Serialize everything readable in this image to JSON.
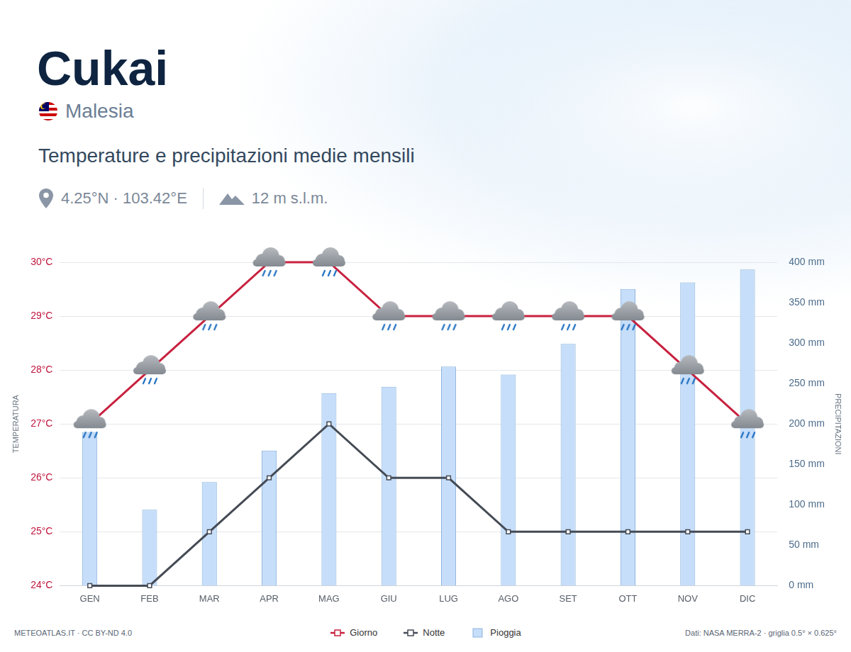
{
  "header": {
    "title": "Cukai",
    "country": "Malesia",
    "subtitle": "Temperature e precipitazioni medie mensili",
    "coordinates": "4.25°N · 103.42°E",
    "elevation": "12 m s.l.m."
  },
  "footer": {
    "credit": "METEOATLAS.IT · CC BY-ND 4.0",
    "source": "Dati: NASA MERRA-2 · griglia 0.5° × 0.625°"
  },
  "chart_data": {
    "type": "bar",
    "categories": [
      "GEN",
      "FEB",
      "MAR",
      "APR",
      "MAG",
      "GIU",
      "LUG",
      "AGO",
      "SET",
      "OTT",
      "NOV",
      "DIC"
    ],
    "series": [
      {
        "name": "Giorno",
        "type": "line",
        "color": "#c8213f",
        "marker": "cloud",
        "values": [
          27,
          28,
          29,
          30,
          30,
          29,
          29,
          29,
          29,
          29,
          28,
          27
        ]
      },
      {
        "name": "Notte",
        "type": "line",
        "color": "#454b55",
        "marker": "square",
        "values": [
          24,
          24,
          25,
          26,
          27,
          26,
          26,
          25,
          25,
          25,
          25,
          25
        ]
      },
      {
        "name": "Pioggia",
        "type": "bar",
        "color": "#c6defa",
        "axis": "y2",
        "values": [
          190,
          94,
          128,
          167,
          238,
          246,
          271,
          261,
          299,
          367,
          375,
          391
        ]
      }
    ],
    "y_label": "TEMPERATURA",
    "y2_label": "PRECIPITAZIONI",
    "ylim": [
      24,
      30
    ],
    "yticks": [
      {
        "value": 24,
        "label": "24°C"
      },
      {
        "value": 25,
        "label": "25°C"
      },
      {
        "value": 26,
        "label": "26°C"
      },
      {
        "value": 27,
        "label": "27°C"
      },
      {
        "value": 28,
        "label": "28°C"
      },
      {
        "value": 29,
        "label": "29°C"
      },
      {
        "value": 30,
        "label": "30°C"
      }
    ],
    "y2lim": [
      0,
      400
    ],
    "y2ticks": [
      {
        "value": 0,
        "label": "0 mm"
      },
      {
        "value": 50,
        "label": "50 mm"
      },
      {
        "value": 100,
        "label": "100 mm"
      },
      {
        "value": 150,
        "label": "150 mm"
      },
      {
        "value": 200,
        "label": "200 mm"
      },
      {
        "value": 250,
        "label": "250 mm"
      },
      {
        "value": 300,
        "label": "300 mm"
      },
      {
        "value": 350,
        "label": "350 mm"
      },
      {
        "value": 400,
        "label": "400 mm"
      }
    ],
    "grid": true,
    "legend": "bottom"
  }
}
